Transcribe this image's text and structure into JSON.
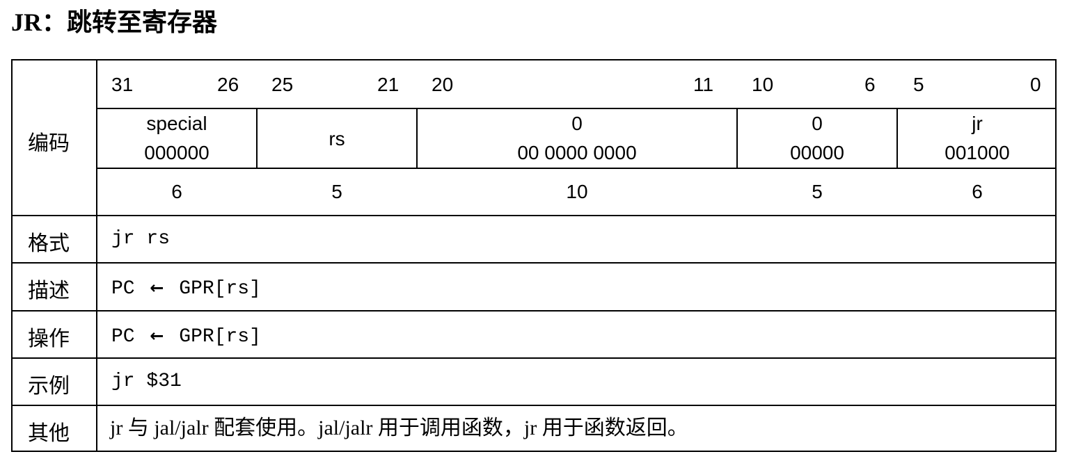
{
  "title": "JR：跳转至寄存器",
  "encoding": {
    "label": "编码",
    "bits": [
      "31",
      "26",
      "25",
      "21",
      "20",
      "11",
      "10",
      "6",
      "5",
      "0"
    ],
    "fields": [
      {
        "name": "special",
        "value": "000000",
        "width": "6"
      },
      {
        "name": "rs",
        "value": "",
        "width": "5"
      },
      {
        "name": "0",
        "value": "00 0000 0000",
        "width": "10"
      },
      {
        "name": "0",
        "value": "00000",
        "width": "5"
      },
      {
        "name": "jr",
        "value": "001000",
        "width": "6"
      }
    ]
  },
  "format": {
    "label": "格式",
    "value": "jr rs"
  },
  "description": {
    "label": "描述",
    "lhs": "PC",
    "arrow": "←",
    "rhs": "GPR[rs]"
  },
  "operation": {
    "label": "操作",
    "lhs": "PC",
    "arrow": "←",
    "rhs": "GPR[rs]"
  },
  "example": {
    "label": "示例",
    "value": "jr $31"
  },
  "other": {
    "label": "其他",
    "value": "jr 与 jal/jalr 配套使用。jal/jalr 用于调用函数，jr 用于函数返回。"
  }
}
